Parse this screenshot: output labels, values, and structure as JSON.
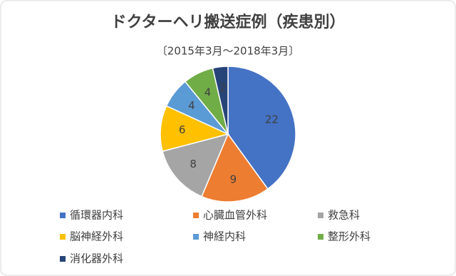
{
  "chart_data": {
    "type": "pie",
    "title": "ドクターヘリ搬送症例（疾患別）",
    "subtitle": "〔2015年3月～2018年3月〕",
    "categories": [
      "循環器内科",
      "心臓血管外科",
      "救急科",
      "脳神経外科",
      "神経内科",
      "整形外科",
      "消化器外科"
    ],
    "values": [
      22,
      9,
      8,
      6,
      4,
      4,
      2
    ],
    "colors": [
      "#4472c4",
      "#ed7d31",
      "#a5a5a5",
      "#ffc000",
      "#5b9bd5",
      "#70ad47",
      "#264478"
    ],
    "legend": "bottom"
  }
}
